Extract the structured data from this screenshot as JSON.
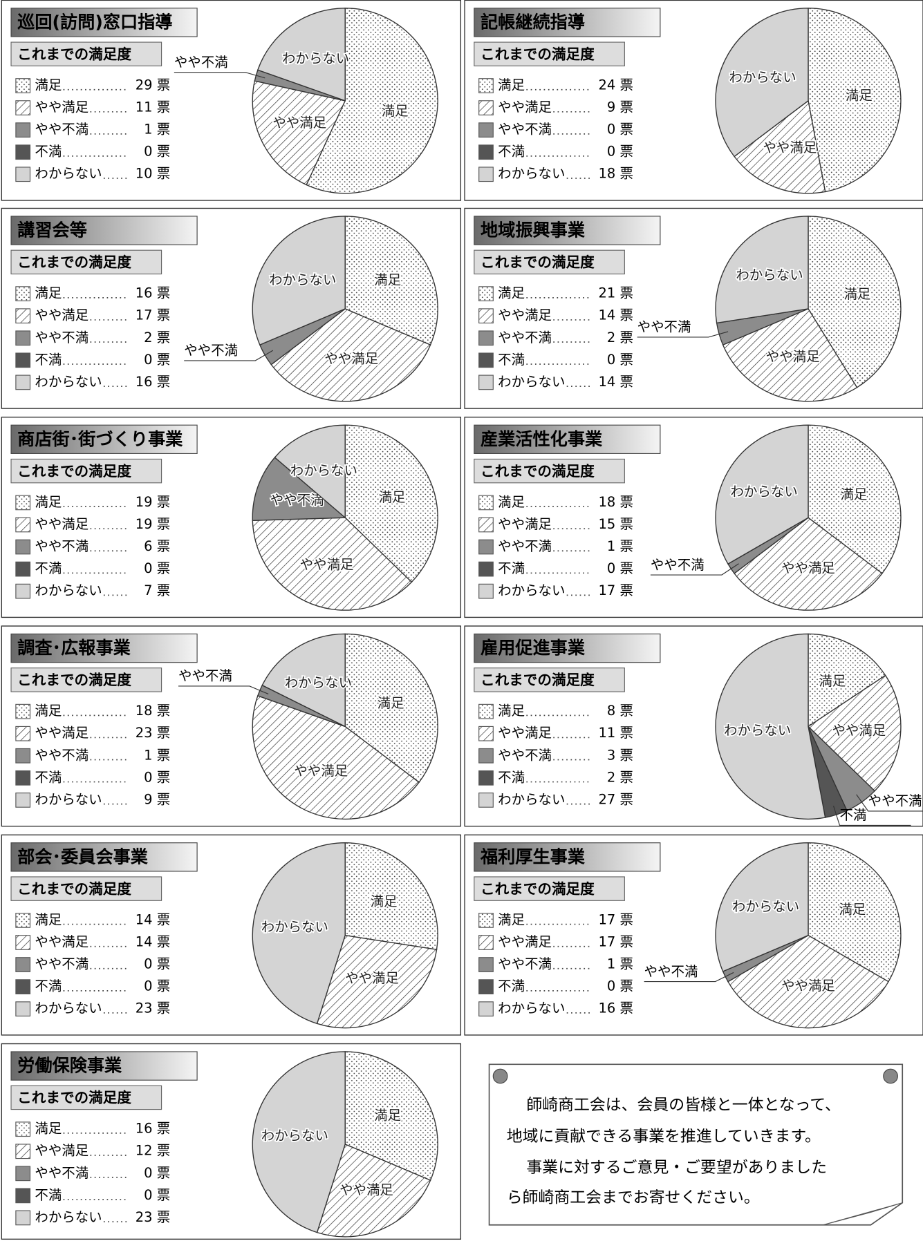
{
  "chart_data": [
    {
      "type": "pie",
      "title": "巡回(訪問)窓口指導",
      "subtitle": "これまでの満足度",
      "categories": [
        "満足",
        "やや満足",
        "やや不満",
        "不満",
        "わからない"
      ],
      "values": [
        29,
        11,
        1,
        0,
        10
      ],
      "value_labels": [
        "29 票",
        "11 票",
        "1 票",
        "0 票",
        "10 票"
      ],
      "colors": [
        "#ffffff",
        "#ffffff",
        "#8c8c8c",
        "#555555",
        "#d4d4d4"
      ],
      "patterns": [
        "dots",
        "hatch",
        null,
        null,
        null
      ]
    },
    {
      "type": "pie",
      "title": "記帳継続指導",
      "subtitle": "これまでの満足度",
      "categories": [
        "満足",
        "やや満足",
        "やや不満",
        "不満",
        "わからない"
      ],
      "values": [
        24,
        9,
        0,
        0,
        18
      ],
      "value_labels": [
        "24 票",
        "9 票",
        "0 票",
        "0 票",
        "18 票"
      ],
      "colors": [
        "#ffffff",
        "#ffffff",
        "#8c8c8c",
        "#555555",
        "#d4d4d4"
      ],
      "patterns": [
        "dots",
        "hatch",
        null,
        null,
        null
      ]
    },
    {
      "type": "pie",
      "title": "講習会等",
      "subtitle": "これまでの満足度",
      "categories": [
        "満足",
        "やや満足",
        "やや不満",
        "不満",
        "わからない"
      ],
      "values": [
        16,
        17,
        2,
        0,
        16
      ],
      "value_labels": [
        "16 票",
        "17 票",
        "2 票",
        "0 票",
        "16 票"
      ],
      "colors": [
        "#ffffff",
        "#ffffff",
        "#8c8c8c",
        "#555555",
        "#d4d4d4"
      ],
      "patterns": [
        "dots",
        "hatch",
        null,
        null,
        null
      ]
    },
    {
      "type": "pie",
      "title": "地域振興事業",
      "subtitle": "これまでの満足度",
      "categories": [
        "満足",
        "やや満足",
        "やや不満",
        "不満",
        "わからない"
      ],
      "values": [
        21,
        14,
        2,
        0,
        14
      ],
      "value_labels": [
        "21 票",
        "14 票",
        "2 票",
        "0 票",
        "14 票"
      ],
      "colors": [
        "#ffffff",
        "#ffffff",
        "#8c8c8c",
        "#555555",
        "#d4d4d4"
      ],
      "patterns": [
        "dots",
        "hatch",
        null,
        null,
        null
      ]
    },
    {
      "type": "pie",
      "title": "商店街･街づくり事業",
      "subtitle": "これまでの満足度",
      "categories": [
        "満足",
        "やや満足",
        "やや不満",
        "不満",
        "わからない"
      ],
      "values": [
        19,
        19,
        6,
        0,
        7
      ],
      "value_labels": [
        "19 票",
        "19 票",
        "6 票",
        "0 票",
        "7 票"
      ],
      "colors": [
        "#ffffff",
        "#ffffff",
        "#8c8c8c",
        "#555555",
        "#d4d4d4"
      ],
      "patterns": [
        "dots",
        "hatch",
        null,
        null,
        null
      ]
    },
    {
      "type": "pie",
      "title": "産業活性化事業",
      "subtitle": "これまでの満足度",
      "categories": [
        "満足",
        "やや満足",
        "やや不満",
        "不満",
        "わからない"
      ],
      "values": [
        18,
        15,
        1,
        0,
        17
      ],
      "value_labels": [
        "18 票",
        "15 票",
        "1 票",
        "0 票",
        "17 票"
      ],
      "colors": [
        "#ffffff",
        "#ffffff",
        "#8c8c8c",
        "#555555",
        "#d4d4d4"
      ],
      "patterns": [
        "dots",
        "hatch",
        null,
        null,
        null
      ]
    },
    {
      "type": "pie",
      "title": "調査･広報事業",
      "subtitle": "これまでの満足度",
      "categories": [
        "満足",
        "やや満足",
        "やや不満",
        "不満",
        "わからない"
      ],
      "values": [
        18,
        23,
        1,
        0,
        9
      ],
      "value_labels": [
        "18 票",
        "23 票",
        "1 票",
        "0 票",
        "9 票"
      ],
      "colors": [
        "#ffffff",
        "#ffffff",
        "#8c8c8c",
        "#555555",
        "#d4d4d4"
      ],
      "patterns": [
        "dots",
        "hatch",
        null,
        null,
        null
      ]
    },
    {
      "type": "pie",
      "title": "雇用促進事業",
      "subtitle": "これまでの満足度",
      "categories": [
        "満足",
        "やや満足",
        "やや不満",
        "不満",
        "わからない"
      ],
      "values": [
        8,
        11,
        3,
        2,
        27
      ],
      "value_labels": [
        "8 票",
        "11 票",
        "3 票",
        "2 票",
        "27 票"
      ],
      "colors": [
        "#ffffff",
        "#ffffff",
        "#8c8c8c",
        "#555555",
        "#d4d4d4"
      ],
      "patterns": [
        "dots",
        "hatch",
        null,
        null,
        null
      ]
    },
    {
      "type": "pie",
      "title": "部会･委員会事業",
      "subtitle": "これまでの満足度",
      "categories": [
        "満足",
        "やや満足",
        "やや不満",
        "不満",
        "わからない"
      ],
      "values": [
        14,
        14,
        0,
        0,
        23
      ],
      "value_labels": [
        "14 票",
        "14 票",
        "0 票",
        "0 票",
        "23 票"
      ],
      "colors": [
        "#ffffff",
        "#ffffff",
        "#8c8c8c",
        "#555555",
        "#d4d4d4"
      ],
      "patterns": [
        "dots",
        "hatch",
        null,
        null,
        null
      ]
    },
    {
      "type": "pie",
      "title": "福利厚生事業",
      "subtitle": "これまでの満足度",
      "categories": [
        "満足",
        "やや満足",
        "やや不満",
        "不満",
        "わからない"
      ],
      "values": [
        17,
        17,
        1,
        0,
        16
      ],
      "value_labels": [
        "17 票",
        "17 票",
        "1 票",
        "0 票",
        "16 票"
      ],
      "colors": [
        "#ffffff",
        "#ffffff",
        "#8c8c8c",
        "#555555",
        "#d4d4d4"
      ],
      "patterns": [
        "dots",
        "hatch",
        null,
        null,
        null
      ]
    },
    {
      "type": "pie",
      "title": "労働保険事業",
      "subtitle": "これまでの満足度",
      "categories": [
        "満足",
        "やや満足",
        "やや不満",
        "不満",
        "わからない"
      ],
      "values": [
        16,
        12,
        0,
        0,
        23
      ],
      "value_labels": [
        "16 票",
        "12 票",
        "0 票",
        "0 票",
        "23 票"
      ],
      "colors": [
        "#ffffff",
        "#ffffff",
        "#8c8c8c",
        "#555555",
        "#d4d4d4"
      ],
      "patterns": [
        "dots",
        "hatch",
        null,
        null,
        null
      ]
    }
  ],
  "note": {
    "lines": [
      "師崎商工会は、会員の皆様と一体となって、",
      "地域に貢献できる事業を推進していきます。",
      "事業に対するご意見・ご要望がありました",
      "ら師崎商工会までお寄せください。"
    ]
  }
}
